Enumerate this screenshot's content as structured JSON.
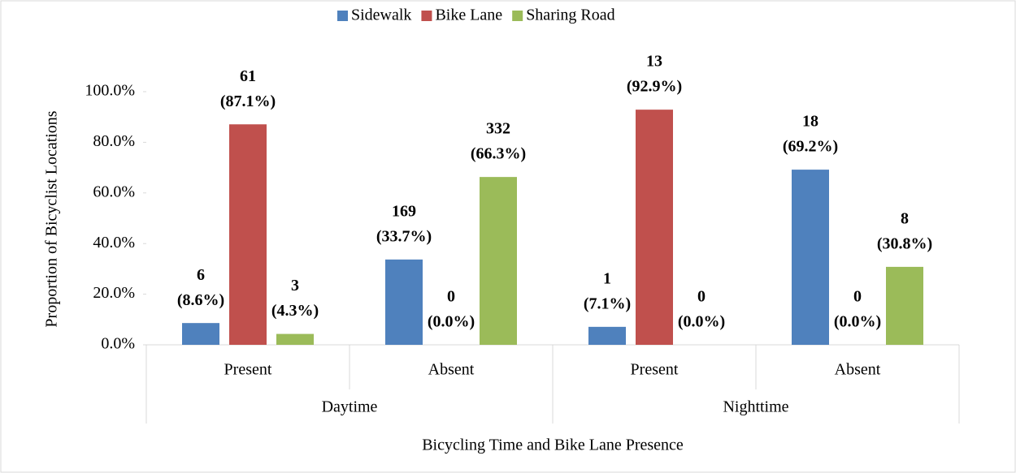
{
  "chart_data": {
    "type": "bar",
    "y_label": "Proportion of Bicyclist Locations",
    "x_label": "Bicycling Time and Bike Lane Presence",
    "categories": [
      "Present",
      "Absent",
      "Present",
      "Absent"
    ],
    "groups": [
      "Daytime",
      "Nighttime"
    ],
    "series": [
      {
        "name": "Sidewalk",
        "color": "#4f81bd",
        "values": [
          8.6,
          33.7,
          7.1,
          69.2
        ],
        "value_labels": [
          [
            "6",
            "(8.6%)"
          ],
          [
            "169",
            "(33.7%)"
          ],
          [
            "1",
            "(7.1%)"
          ],
          [
            "18",
            "(69.2%)"
          ]
        ]
      },
      {
        "name": "Bike Lane",
        "color": "#c0504d",
        "values": [
          87.1,
          0,
          92.9,
          0
        ],
        "value_labels": [
          [
            "61",
            "(87.1%)"
          ],
          [
            "0",
            "(0.0%)"
          ],
          [
            "13",
            "(92.9%)"
          ],
          [
            "0",
            "(0.0%)"
          ]
        ]
      },
      {
        "name": "Sharing Road",
        "color": "#9bbb59",
        "values": [
          4.3,
          66.3,
          0,
          30.8
        ],
        "value_labels": [
          [
            "3",
            "(4.3%)"
          ],
          [
            "332",
            "(66.3%)"
          ],
          [
            "0",
            "(0.0%)"
          ],
          [
            "8",
            "(30.8%)"
          ]
        ]
      }
    ],
    "ylim": [
      0,
      100
    ],
    "yticks": [
      {
        "value": 0,
        "label": "0.0%"
      },
      {
        "value": 20,
        "label": "20.0%"
      },
      {
        "value": 40,
        "label": "40.0%"
      },
      {
        "value": 60,
        "label": "60.0%"
      },
      {
        "value": 80,
        "label": "80.0%"
      },
      {
        "value": 100,
        "label": "100.0%"
      }
    ],
    "legend": "top"
  }
}
